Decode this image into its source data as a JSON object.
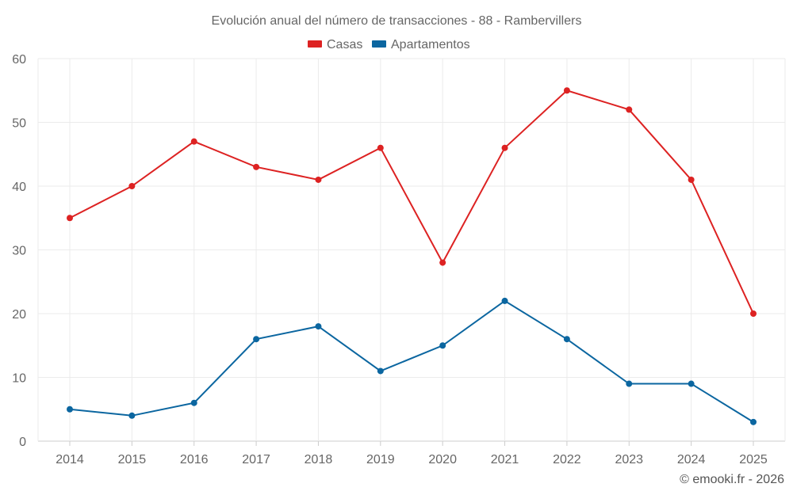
{
  "chart_data": {
    "type": "line",
    "title": "Evolución anual del número de transacciones - 88 - Rambervillers",
    "xlabel": "",
    "ylabel": "",
    "x": [
      "2014",
      "2015",
      "2016",
      "2017",
      "2018",
      "2019",
      "2020",
      "2021",
      "2022",
      "2023",
      "2024",
      "2025"
    ],
    "ylim": [
      0,
      60
    ],
    "yticks": [
      0,
      10,
      20,
      30,
      40,
      50,
      60
    ],
    "grid": true,
    "legend_position": "top-center",
    "series": [
      {
        "name": "Casas",
        "color": "#dd2222",
        "values": [
          35,
          40,
          47,
          43,
          41,
          46,
          28,
          46,
          55,
          52,
          41,
          20
        ]
      },
      {
        "name": "Apartamentos",
        "color": "#0b66a0",
        "values": [
          5,
          4,
          6,
          16,
          18,
          11,
          15,
          22,
          16,
          9,
          9,
          3
        ]
      }
    ]
  },
  "credit": "© emooki.fr - 2026"
}
